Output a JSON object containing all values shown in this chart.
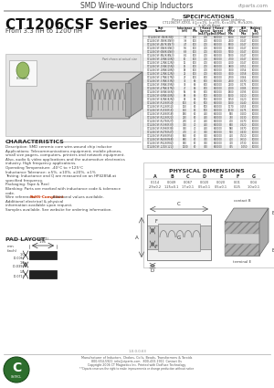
{
  "title_header": "SMD Wire-wound Chip Inductors",
  "website": "ctparts.com",
  "series_title": "CT1206CSF Series",
  "series_subtitle": "From 3.3 nH to 1200 nH",
  "bg_color": "#ffffff",
  "specs_title": "SPECIFICATIONS",
  "specs_note1": "Please specify tolerance code when ordering.",
  "specs_note2": "CT1206CSF-XXXX, ±1=±1%, J=±5%, K=±10%, M=±20%.",
  "specs_note3": "* ± nH on these",
  "col_headers": [
    "Part\nNumber",
    "Inductance &\n(nH)",
    "Q\nMin",
    "Ir-Rated\nCurrent (mA)\n(Typ)",
    "Ir-Rated\nCurrent (mA)\n(Max)",
    "SRF\n(MHz)\nMin",
    "DCR\n(Ohm)\nMax",
    "Packing\nQty\n(pcs)"
  ],
  "spec_rows": [
    [
      "CT1206CSF-3N3K(N3J)",
      "3.3",
      "100",
      "700",
      "900000",
      "8000",
      "0.047",
      "10000"
    ],
    [
      "CT1206CSF-3N9K(3N9J)",
      "3.9",
      "100",
      "700",
      "900000",
      "7400",
      "0.047",
      "10000"
    ],
    [
      "CT1206CSF-4N7K(4N7J)",
      "4.7",
      "100",
      "700",
      "900000",
      "6900",
      "0.047",
      "10000"
    ],
    [
      "CT1206CSF-5N6K(5N6J)",
      "5.6",
      "100",
      "700",
      "900000",
      "6300",
      "0.047",
      "10000"
    ],
    [
      "CT1206CSF-6N8K(6N8J)",
      "6.8",
      "100",
      "700",
      "900000",
      "5700",
      "0.047",
      "10000"
    ],
    [
      "CT1206CSF-8N2K(8N2J)",
      "8.2",
      "100",
      "700",
      "900000",
      "5200",
      "0.047",
      "10000"
    ],
    [
      "CT1206CSF-10NK(10NJ)",
      "10",
      "100",
      "700",
      "900000",
      "4700",
      "0.047",
      "10000"
    ],
    [
      "CT1206CSF-12NK(12NJ)",
      "12",
      "100",
      "700",
      "900000",
      "4200",
      "0.047",
      "10000"
    ],
    [
      "CT1206CSF-15NK(15NJ)",
      "15",
      "100",
      "700",
      "900000",
      "3800",
      "0.051",
      "10000"
    ],
    [
      "CT1206CSF-18NK(18NJ)",
      "18",
      "100",
      "700",
      "900000",
      "3400",
      "0.054",
      "10000"
    ],
    [
      "CT1206CSF-22NK(22NJ)",
      "22",
      "100",
      "700",
      "900000",
      "3000",
      "0.058",
      "10000"
    ],
    [
      "CT1206CSF-27NK(27NJ)",
      "27",
      "100",
      "600",
      "900000",
      "2700",
      "0.064",
      "10000"
    ],
    [
      "CT1206CSF-33NK(33NJ)",
      "33",
      "90",
      "600",
      "900000",
      "2400",
      "0.070",
      "10000"
    ],
    [
      "CT1206CSF-39NK(39NJ)",
      "39",
      "90",
      "600",
      "900000",
      "2200",
      "0.075",
      "10000"
    ],
    [
      "CT1206CSF-47NK(47NJ)",
      "47",
      "90",
      "600",
      "900000",
      "2000",
      "0.085",
      "10000"
    ],
    [
      "CT1206CSF-56NK(56NJ)",
      "56",
      "90",
      "600",
      "900000",
      "1800",
      "0.095",
      "10000"
    ],
    [
      "CT1206CSF-68NK(68NJ)",
      "68",
      "90",
      "500",
      "900000",
      "1600",
      "0.110",
      "10000"
    ],
    [
      "CT1206CSF-82NK(82NJ)",
      "82",
      "90",
      "500",
      "900000",
      "1450",
      "0.120",
      "10000"
    ],
    [
      "CT1206CSF-R10K(R10J)",
      "100",
      "80",
      "500",
      "900000",
      "1300",
      "0.140",
      "10000"
    ],
    [
      "CT1206CSF-R12K(R12J)",
      "120",
      "80",
      "500",
      "900000",
      "1170",
      "0.155",
      "10000"
    ],
    [
      "CT1206CSF-R15K(R15J)",
      "150",
      "80",
      "500",
      "900000",
      "1030",
      "0.175",
      "10000"
    ],
    [
      "CT1206CSF-R18K(R18J)",
      "180",
      "80",
      "400",
      "900000",
      "890",
      "0.200",
      "10000"
    ],
    [
      "CT1206CSF-R22K(R22J)",
      "220",
      "80",
      "400",
      "900000",
      "790",
      "0.230",
      "10000"
    ],
    [
      "CT1206CSF-R27K(R27J)",
      "270",
      "70",
      "400",
      "900000",
      "700",
      "0.270",
      "10000"
    ],
    [
      "CT1206CSF-R33K(R33J)",
      "330",
      "70",
      "400",
      "900000",
      "630",
      "0.320",
      "10000"
    ],
    [
      "CT1206CSF-R39K(R39J)",
      "390",
      "70",
      "400",
      "900000",
      "580",
      "0.370",
      "10000"
    ],
    [
      "CT1206CSF-R47K(R47J)",
      "470",
      "70",
      "300",
      "900000",
      "510",
      "0.430",
      "10000"
    ],
    [
      "CT1206CSF-R56K(R56J)",
      "560",
      "60",
      "300",
      "900000",
      "460",
      "0.510",
      "10000"
    ],
    [
      "CT1206CSF-R68K(R68J)",
      "680",
      "60",
      "300",
      "900000",
      "410",
      "0.610",
      "10000"
    ],
    [
      "CT1206CSF-R82K(R82J)",
      "820",
      "60",
      "300",
      "900000",
      "370",
      "0.730",
      "10000"
    ],
    [
      "CT1206CSF-121K(121J)",
      "1200",
      "60",
      "300",
      "900000",
      "305",
      "1.050",
      "10000"
    ]
  ],
  "char_title": "CHARACTERISTICS",
  "char_lines": [
    "Description: SMD ceramic core wire-wound chip inductor",
    "Applications: Telecommunications equipment, mobile phones,",
    "small size pagers, computers, printers and network equipment.",
    "Also, audio & video applications and the automotive electronics",
    "industry. High frequency applications.",
    "Operating Temperature: -40°C to +125°C",
    "Inductance Tolerance: ±5%, ±10%, ±20%, ±1%",
    "Testing: Inductance and Q are measured on an HP4285A at",
    "specified frequency.",
    "Packaging: Tape & Reel",
    "Blanking: Parts are marked with inductance code & tolerance",
    "code.",
    "Wire references: RoHS-Compliant. Additional values available.",
    "Additional electrical & physical",
    "information available upon request.",
    "Samples available. See website for ordering information."
  ],
  "rohs_line_idx": 12,
  "pad_title": "PAD LAYOUT",
  "phys_title": "PHYSICAL DIMENSIONS",
  "dim_headers": [
    "A",
    "B",
    "C",
    "D",
    "E",
    "F",
    "G"
  ],
  "dim_inch": [
    "0.114",
    "0.049",
    "0.067",
    "0.020",
    "0.020",
    "0.01",
    "0.04"
  ],
  "dim_mm": [
    "2.9±0.2",
    "1.25±0.1",
    "1.7±0.1",
    "0.5±0.1",
    "0.5±0.1",
    "0.25",
    "1.0±0.1"
  ],
  "footer_line1": "Manufacturer of Inductors, Chokes, Coils, Beads, Transformers & Toroids",
  "footer_line2": "800-654-5921  info@ctparts.com   800-433-1911  Contact Us",
  "footer_line3": "Copyright 2006 CT Magnetics Inc. Printed with DotFuse Technology",
  "footer_line4": "**Ctparts reserves the right to make improvements or change production without notice",
  "doc_num": "1.0.0.0.63"
}
